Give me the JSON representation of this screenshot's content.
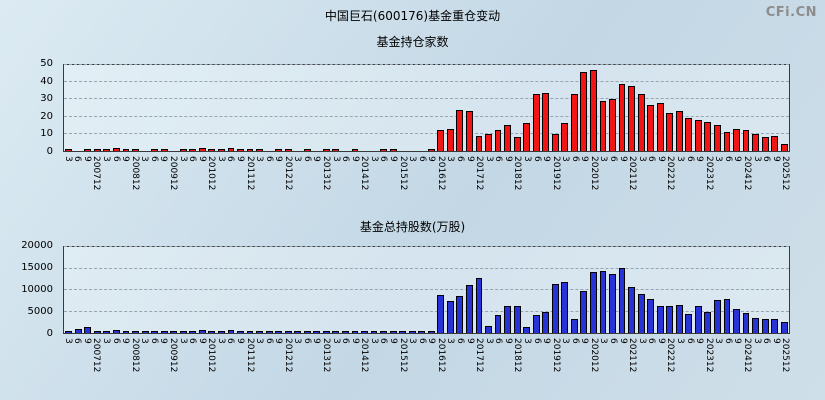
{
  "page": {
    "title": "中国巨石(600176)基金重仓变动",
    "watermark": "CFi.CN",
    "background_top": "#dcebf3",
    "background_bottom": "#c3d7e5"
  },
  "chart_data": [
    {
      "type": "bar",
      "title": "基金持仓家数",
      "bar_fill": "#f21515",
      "bar_border": "#000000",
      "grid": "dashed",
      "ylim": [
        0,
        50
      ],
      "yticks": [
        0,
        10,
        20,
        30,
        40,
        50
      ],
      "categories": [
        "3",
        "6",
        "9",
        "200712",
        "3",
        "6",
        "9",
        "200812",
        "3",
        "6",
        "9",
        "200912",
        "3",
        "6",
        "9",
        "201012",
        "3",
        "6",
        "9",
        "201112",
        "3",
        "6",
        "9",
        "201212",
        "3",
        "6",
        "9",
        "201312",
        "3",
        "6",
        "9",
        "201412",
        "3",
        "6",
        "9",
        "201512",
        "3",
        "6",
        "9",
        "201612",
        "3",
        "6",
        "9",
        "201712",
        "3",
        "6",
        "9",
        "201812",
        "3",
        "6",
        "9",
        "201912",
        "3",
        "6",
        "9",
        "202012",
        "3",
        "6",
        "9",
        "202112",
        "3",
        "6",
        "9",
        "202212",
        "3",
        "6",
        "9",
        "202312",
        "3",
        "6",
        "9",
        "202412",
        "3",
        "6",
        "9",
        "202512"
      ],
      "values": [
        1,
        0,
        1,
        1,
        1,
        2,
        1,
        1,
        0,
        1,
        1,
        0,
        1,
        1,
        2,
        1,
        1,
        2,
        1,
        1,
        1,
        0,
        1,
        1,
        0,
        1,
        0,
        1,
        1,
        0,
        1,
        0,
        0,
        1,
        1,
        0,
        0,
        0,
        1,
        12,
        13,
        24,
        23,
        9,
        10,
        12,
        15,
        8,
        16,
        33,
        34,
        10,
        16,
        33,
        46,
        47,
        29,
        30,
        39,
        38,
        33,
        27,
        28,
        22,
        23,
        19,
        18,
        17,
        15,
        11,
        13,
        12,
        10,
        8,
        9,
        4
      ]
    },
    {
      "type": "bar",
      "title": "基金总持股数(万股)",
      "bar_fill": "#2733d6",
      "bar_border": "#000000",
      "grid": "dashed",
      "ylim": [
        0,
        20000
      ],
      "yticks": [
        0,
        5000,
        10000,
        15000,
        20000
      ],
      "categories": [
        "3",
        "6",
        "9",
        "200712",
        "3",
        "6",
        "9",
        "200812",
        "3",
        "6",
        "9",
        "200912",
        "3",
        "6",
        "9",
        "201012",
        "3",
        "6",
        "9",
        "201112",
        "3",
        "6",
        "9",
        "201212",
        "3",
        "6",
        "9",
        "201312",
        "3",
        "6",
        "9",
        "201412",
        "3",
        "6",
        "9",
        "201512",
        "3",
        "6",
        "9",
        "201612",
        "3",
        "6",
        "9",
        "201712",
        "3",
        "6",
        "9",
        "201812",
        "3",
        "6",
        "9",
        "201912",
        "3",
        "6",
        "9",
        "202012",
        "3",
        "6",
        "9",
        "202112",
        "3",
        "6",
        "9",
        "202212",
        "3",
        "6",
        "9",
        "202312",
        "3",
        "6",
        "9",
        "202412",
        "3",
        "6",
        "9",
        "202512"
      ],
      "values": [
        400,
        1000,
        1300,
        500,
        300,
        600,
        500,
        400,
        200,
        400,
        300,
        200,
        300,
        500,
        600,
        400,
        500,
        700,
        400,
        300,
        300,
        200,
        400,
        300,
        200,
        300,
        200,
        400,
        300,
        200,
        300,
        200,
        200,
        400,
        300,
        200,
        200,
        200,
        300,
        8800,
        7500,
        8600,
        11200,
        12800,
        1700,
        4200,
        6300,
        6200,
        1500,
        4300,
        5000,
        11500,
        11800,
        3300,
        9800,
        14300,
        14500,
        13800,
        15200,
        10800,
        9000,
        8000,
        6300,
        6200,
        6500,
        4500,
        6300,
        5000,
        7600,
        7800,
        5600,
        4700,
        3500,
        3300,
        3200,
        2500
      ]
    }
  ]
}
